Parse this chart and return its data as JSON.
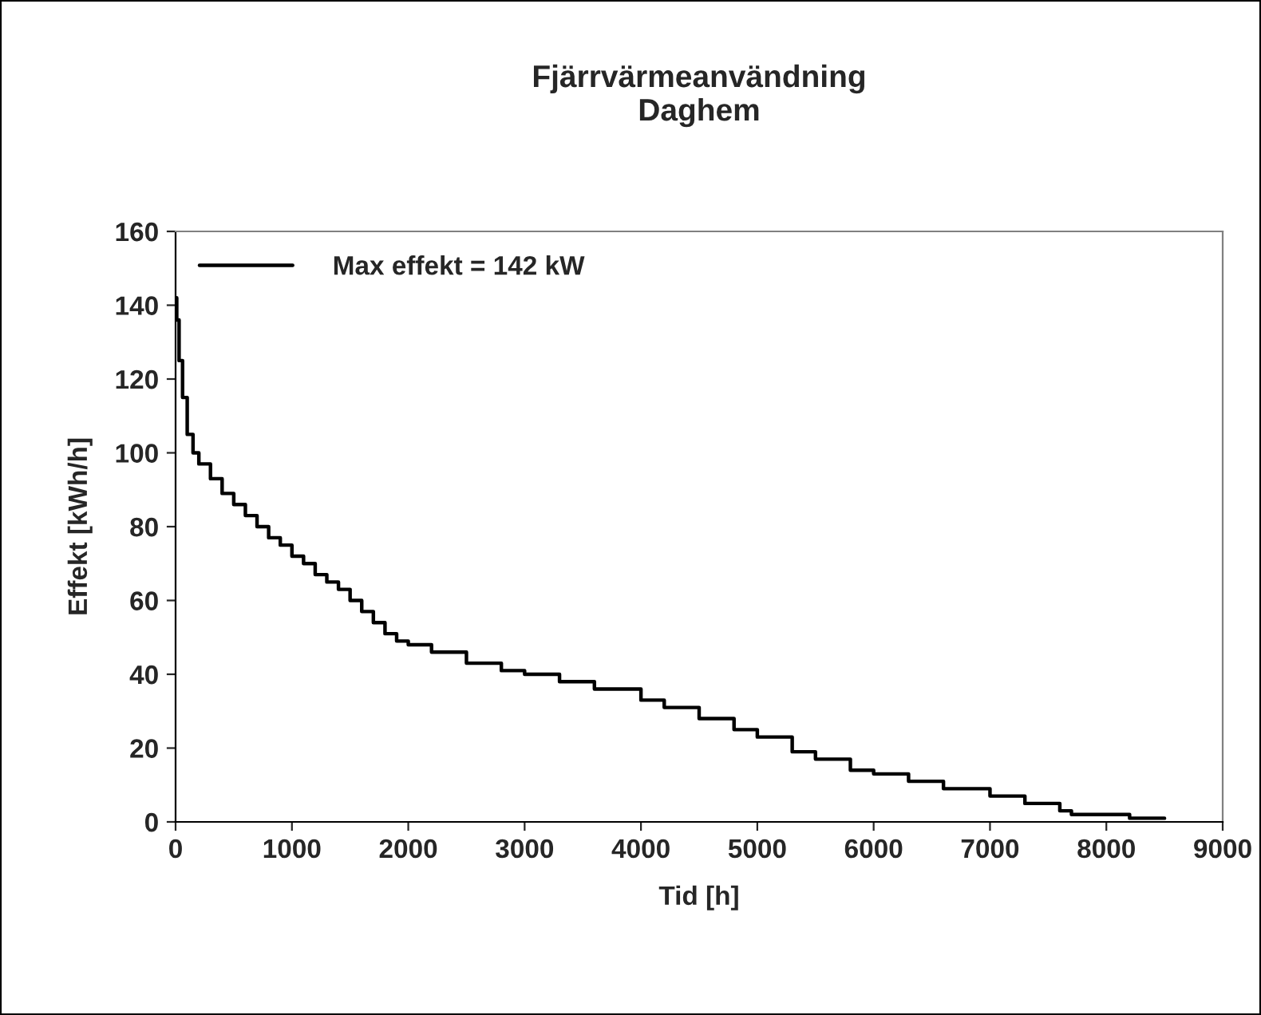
{
  "chart_data": {
    "type": "step",
    "title": "Fjärrvärmeanvändning\nDaghem",
    "xlabel": "Tid [h]",
    "ylabel": "Effekt [kWh/h]",
    "x": [
      0,
      10,
      30,
      60,
      100,
      150,
      200,
      300,
      400,
      500,
      600,
      700,
      800,
      900,
      1000,
      1100,
      1200,
      1300,
      1400,
      1500,
      1600,
      1700,
      1800,
      1900,
      2000,
      2200,
      2500,
      2800,
      3000,
      3300,
      3600,
      4000,
      4200,
      4500,
      4800,
      5000,
      5300,
      5500,
      5800,
      6000,
      6300,
      6600,
      7000,
      7300,
      7600,
      7700,
      8000,
      8200,
      8500
    ],
    "series": [
      {
        "name": "Max effekt = 142 kW",
        "color": "#000000",
        "values": [
          142,
          136,
          125,
          115,
          105,
          100,
          97,
          93,
          89,
          86,
          83,
          80,
          77,
          75,
          72,
          70,
          67,
          65,
          63,
          60,
          57,
          54,
          51,
          49,
          48,
          46,
          43,
          41,
          40,
          38,
          36,
          33,
          31,
          28,
          25,
          23,
          19,
          17,
          14,
          13,
          11,
          9,
          7,
          5,
          3,
          2,
          2,
          1,
          1
        ]
      }
    ],
    "xlim": [
      0,
      9000
    ],
    "xticks": [
      0,
      1000,
      2000,
      3000,
      4000,
      5000,
      6000,
      7000,
      8000,
      9000
    ],
    "ylim": [
      0,
      160
    ],
    "yticks": [
      0,
      20,
      40,
      60,
      80,
      100,
      120,
      140,
      160
    ],
    "grid": false,
    "legend": "top left",
    "marker": "none",
    "line_style": "solid"
  }
}
